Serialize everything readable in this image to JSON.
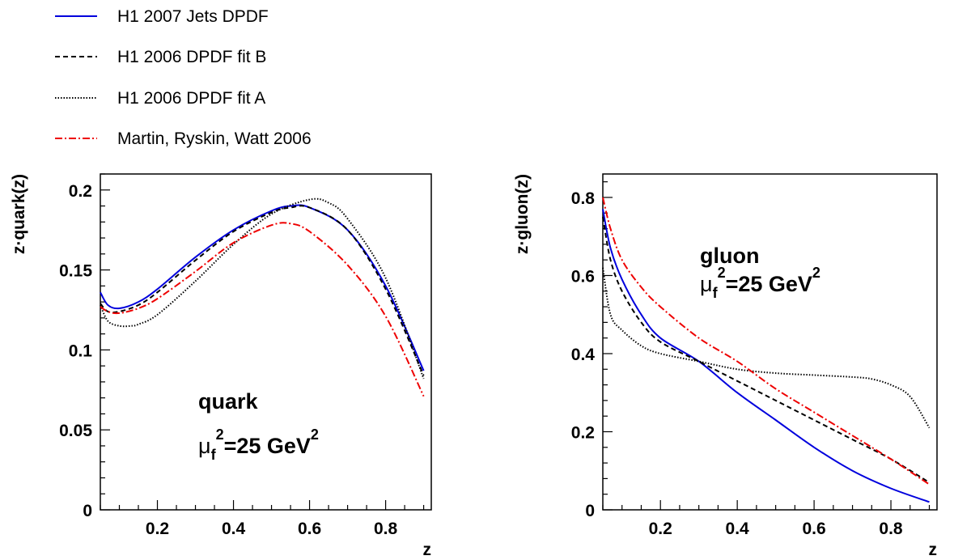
{
  "legend": [
    {
      "label": "H1 2007 Jets DPDF",
      "color": "#0000dd",
      "dash": "solid"
    },
    {
      "label": "H1 2006 DPDF fit B",
      "color": "#000000",
      "dash": "dashed"
    },
    {
      "label": "H1 2006 DPDF fit A",
      "color": "#000000",
      "dash": "dotted"
    },
    {
      "label": "Martin, Ryskin, Watt 2006",
      "color": "#ee0000",
      "dash": "dashdot"
    }
  ],
  "chart_data": [
    {
      "type": "line",
      "xlabel": "z",
      "ylabel": "z·quark(z)",
      "xlim": [
        0.05,
        0.92
      ],
      "ylim": [
        0,
        0.21
      ],
      "xticks": [
        0.2,
        0.4,
        0.6,
        0.8
      ],
      "xtick_labels": [
        "0.2",
        "0.4",
        "0.6",
        "0.8"
      ],
      "yticks": [
        0,
        0.05,
        0.1,
        0.15,
        0.2
      ],
      "ytick_labels": [
        "0",
        "0.05",
        "0.1",
        "0.15",
        "0.2"
      ],
      "annotation": {
        "line1": "quark",
        "mu": "μ",
        "sub": "f",
        "sup": "2",
        "mid": "=25 GeV",
        "sup2": "2"
      },
      "series": [
        {
          "name": "H1 2007 Jets DPDF",
          "x": [
            0.05,
            0.07,
            0.1,
            0.15,
            0.2,
            0.3,
            0.4,
            0.5,
            0.55,
            0.6,
            0.7,
            0.8,
            0.9
          ],
          "y": [
            0.136,
            0.128,
            0.126,
            0.13,
            0.138,
            0.158,
            0.175,
            0.187,
            0.19,
            0.189,
            0.175,
            0.14,
            0.087
          ]
        },
        {
          "name": "H1 2006 DPDF fit B",
          "x": [
            0.05,
            0.07,
            0.1,
            0.15,
            0.2,
            0.3,
            0.4,
            0.5,
            0.55,
            0.6,
            0.7,
            0.8,
            0.9
          ],
          "y": [
            0.129,
            0.124,
            0.124,
            0.128,
            0.136,
            0.156,
            0.174,
            0.186,
            0.189,
            0.189,
            0.175,
            0.138,
            0.084
          ]
        },
        {
          "name": "H1 2006 DPDF fit A",
          "x": [
            0.05,
            0.07,
            0.1,
            0.13,
            0.15,
            0.2,
            0.3,
            0.4,
            0.5,
            0.6,
            0.65,
            0.7,
            0.8,
            0.9
          ],
          "y": [
            0.128,
            0.118,
            0.115,
            0.115,
            0.116,
            0.122,
            0.143,
            0.166,
            0.185,
            0.194,
            0.192,
            0.182,
            0.145,
            0.082
          ]
        },
        {
          "name": "Martin, Ryskin, Watt 2006",
          "x": [
            0.05,
            0.07,
            0.1,
            0.15,
            0.2,
            0.3,
            0.4,
            0.5,
            0.55,
            0.6,
            0.7,
            0.8,
            0.9
          ],
          "y": [
            0.127,
            0.124,
            0.123,
            0.126,
            0.132,
            0.149,
            0.167,
            0.178,
            0.179,
            0.174,
            0.153,
            0.121,
            0.071
          ]
        }
      ]
    },
    {
      "type": "line",
      "xlabel": "z",
      "ylabel": "z·gluon(z)",
      "xlim": [
        0.05,
        0.92
      ],
      "ylim": [
        0,
        0.86
      ],
      "xticks": [
        0.2,
        0.4,
        0.6,
        0.8
      ],
      "xtick_labels": [
        "0.2",
        "0.4",
        "0.6",
        "0.8"
      ],
      "yticks": [
        0,
        0.2,
        0.4,
        0.6,
        0.8
      ],
      "ytick_labels": [
        "0",
        "0.2",
        "0.4",
        "0.6",
        "0.8"
      ],
      "annotation": {
        "line1": "gluon",
        "mu": "μ",
        "sub": "f",
        "sup": "2",
        "mid": "=25 GeV",
        "sup2": "2"
      },
      "series": [
        {
          "name": "H1 2007 Jets DPDF",
          "x": [
            0.05,
            0.07,
            0.1,
            0.15,
            0.2,
            0.3,
            0.4,
            0.5,
            0.6,
            0.7,
            0.8,
            0.9
          ],
          "y": [
            0.77,
            0.67,
            0.59,
            0.5,
            0.44,
            0.38,
            0.3,
            0.23,
            0.16,
            0.1,
            0.055,
            0.02
          ]
        },
        {
          "name": "H1 2006 DPDF fit B",
          "x": [
            0.05,
            0.07,
            0.1,
            0.15,
            0.2,
            0.3,
            0.4,
            0.5,
            0.6,
            0.7,
            0.8,
            0.9
          ],
          "y": [
            0.75,
            0.64,
            0.56,
            0.48,
            0.43,
            0.38,
            0.33,
            0.28,
            0.23,
            0.18,
            0.13,
            0.07
          ]
        },
        {
          "name": "H1 2006 DPDF fit A",
          "x": [
            0.05,
            0.07,
            0.1,
            0.15,
            0.2,
            0.3,
            0.4,
            0.5,
            0.6,
            0.7,
            0.75,
            0.8,
            0.85,
            0.9
          ],
          "y": [
            0.62,
            0.5,
            0.46,
            0.42,
            0.4,
            0.38,
            0.36,
            0.35,
            0.345,
            0.34,
            0.335,
            0.32,
            0.29,
            0.21
          ]
        },
        {
          "name": "Martin, Ryskin, Watt 2006",
          "x": [
            0.05,
            0.07,
            0.1,
            0.15,
            0.2,
            0.3,
            0.4,
            0.5,
            0.6,
            0.7,
            0.8,
            0.9
          ],
          "y": [
            0.8,
            0.72,
            0.64,
            0.57,
            0.52,
            0.44,
            0.38,
            0.31,
            0.25,
            0.19,
            0.13,
            0.065
          ]
        }
      ]
    }
  ]
}
